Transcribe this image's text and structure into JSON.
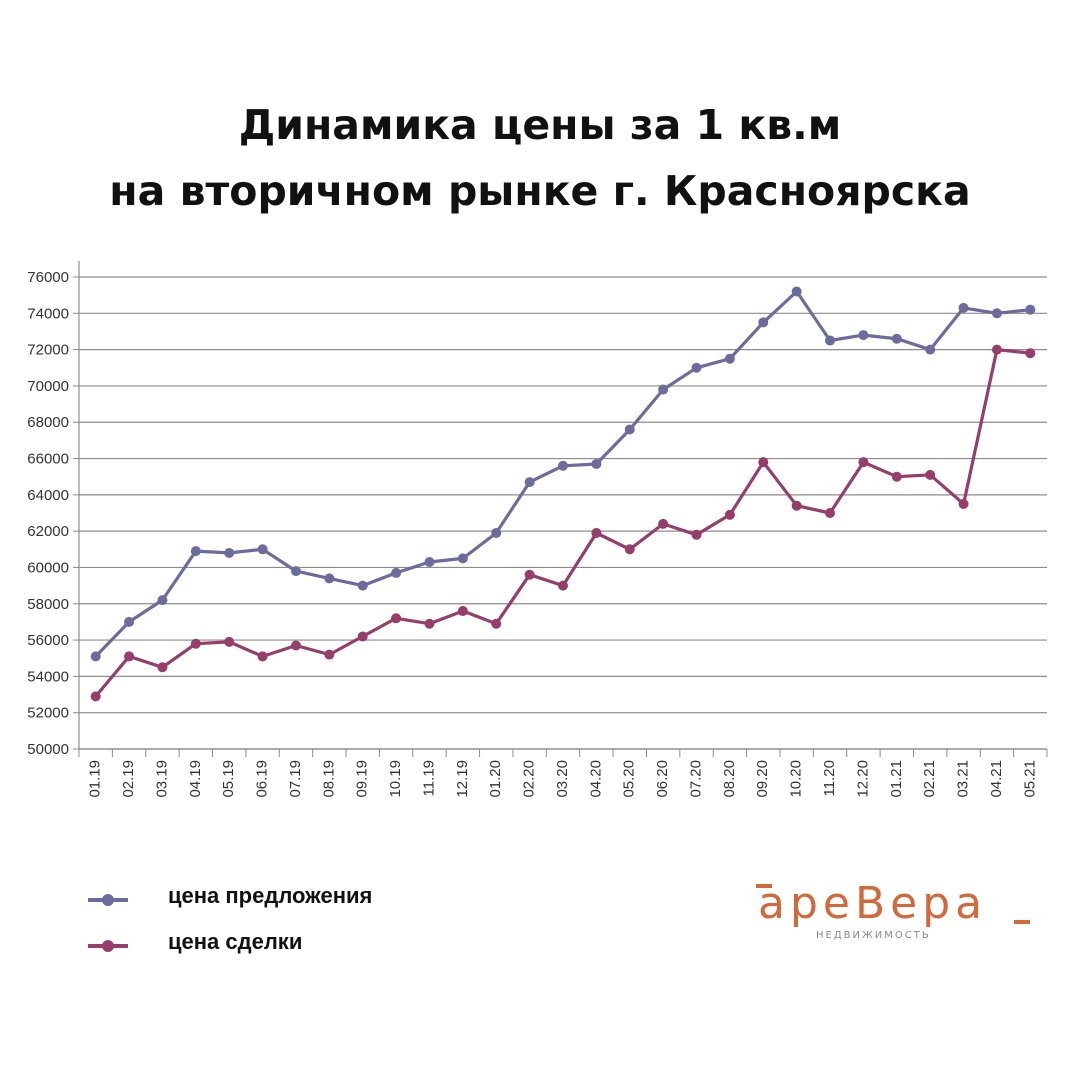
{
  "header": {
    "title_line1": "Динамика цены за 1 кв.м",
    "title_line2": "на вторичном рынке г. Красноярска"
  },
  "legend": {
    "items": [
      {
        "label": "цена предложения",
        "color": "#6b6b9e"
      },
      {
        "label": "цена сделки",
        "color": "#963d6a"
      }
    ]
  },
  "logo": {
    "word": "apeBepa",
    "subtitle": "НЕДВИЖИМОСТЬ",
    "color": "#d5683a"
  },
  "chart_data": {
    "type": "line",
    "categories": [
      "01.19",
      "02.19",
      "03.19",
      "04.19",
      "05.19",
      "06.19",
      "07.19",
      "08.19",
      "09.19",
      "10.19",
      "11.19",
      "12.19",
      "01.20",
      "02.20",
      "03.20",
      "04.20",
      "05.20",
      "06.20",
      "07.20",
      "08.20",
      "09.20",
      "10.20",
      "11.20",
      "12.20",
      "01.21",
      "02.21",
      "03.21",
      "04.21",
      "05.21"
    ],
    "ylim": [
      50000,
      76000
    ],
    "yticks": [
      50000,
      52000,
      54000,
      56000,
      58000,
      60000,
      62000,
      64000,
      66000,
      68000,
      70000,
      72000,
      74000,
      76000
    ],
    "grid": true,
    "series": [
      {
        "name": "цена предложения",
        "color": "#6b6b9e",
        "values": [
          55100,
          57000,
          58200,
          60900,
          60800,
          61000,
          59800,
          59400,
          59000,
          59700,
          60300,
          60500,
          61900,
          64700,
          65600,
          65700,
          67600,
          69800,
          71000,
          71500,
          73500,
          75200,
          72500,
          72800,
          72600,
          72000,
          74300,
          74000,
          74200
        ]
      },
      {
        "name": "цена сделки",
        "color": "#963d6a",
        "values": [
          52900,
          55100,
          54500,
          55800,
          55900,
          55100,
          55700,
          55200,
          56200,
          57200,
          56900,
          57600,
          56900,
          59600,
          59000,
          61900,
          61000,
          62400,
          61800,
          62900,
          65800,
          63400,
          63000,
          65800,
          65000,
          65100,
          63500,
          72000,
          71800
        ]
      }
    ]
  }
}
